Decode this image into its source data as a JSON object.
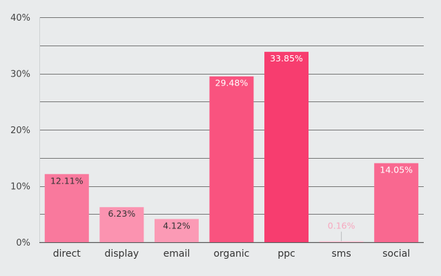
{
  "chart_data": {
    "type": "bar",
    "title": "",
    "xlabel": "",
    "ylabel": "",
    "ylim": [
      0,
      40
    ],
    "yticks": [
      0,
      10,
      20,
      30,
      40
    ],
    "ytick_labels": [
      "0%",
      "10%",
      "20%",
      "30%",
      "40%"
    ],
    "grid": true,
    "categories": [
      "direct",
      "display",
      "email",
      "organic",
      "ppc",
      "sms",
      "social"
    ],
    "values": [
      12.11,
      6.23,
      4.12,
      29.48,
      33.85,
      0.16,
      14.05
    ],
    "data_labels": [
      "12.11%",
      "6.23%",
      "4.12%",
      "29.48%",
      "33.85%",
      "0.16%",
      "14.05%"
    ],
    "colors": [
      "#f9799d",
      "#fb93b0",
      "#fb9ab5",
      "#f9537f",
      "#f73d6f",
      "#fdbfd1",
      "#f96890"
    ],
    "label_colors": [
      "#333333",
      "#333333",
      "#333333",
      "#ffffff",
      "#ffffff",
      "#f7a8bf",
      "#ffffff"
    ]
  }
}
